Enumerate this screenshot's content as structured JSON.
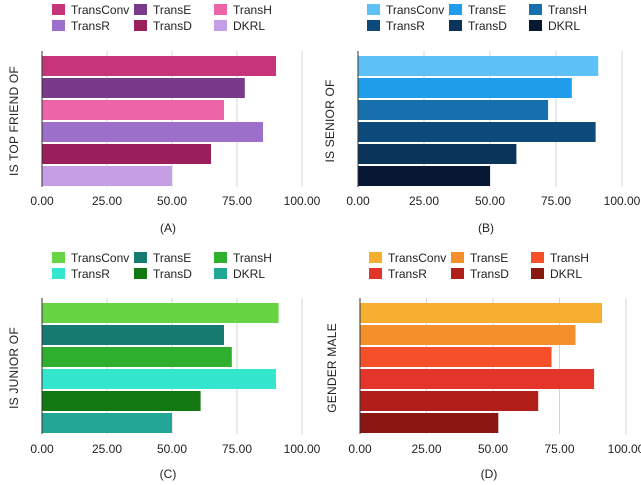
{
  "chart_data": [
    {
      "type": "bar",
      "caption": "(A)",
      "ylabel": "IS TOP FRIEND OF",
      "xlim": [
        0,
        100
      ],
      "xticks": [
        "0.00",
        "25.00",
        "50.00",
        "75.00",
        "100.00"
      ],
      "legend_position": "top",
      "series": [
        {
          "name": "TransConv",
          "value": 90,
          "color": "#c6347a"
        },
        {
          "name": "TransE",
          "value": 78,
          "color": "#7a3a8c"
        },
        {
          "name": "TransH",
          "value": 70,
          "color": "#ee64a8"
        },
        {
          "name": "TransR",
          "value": 85,
          "color": "#9b6fca"
        },
        {
          "name": "TransD",
          "value": 65,
          "color": "#9b1f5d"
        },
        {
          "name": "DKRL",
          "value": 50,
          "color": "#c59fe6"
        }
      ]
    },
    {
      "type": "bar",
      "caption": "(B)",
      "ylabel": "IS SENIOR OF",
      "xlim": [
        0,
        100
      ],
      "xticks": [
        "0.00",
        "25.00",
        "50.00",
        "75.00",
        "100.00"
      ],
      "legend_position": "top",
      "series": [
        {
          "name": "TransConv",
          "value": 91,
          "color": "#5ec1f5"
        },
        {
          "name": "TransE",
          "value": 81,
          "color": "#1f9cea"
        },
        {
          "name": "TransH",
          "value": 72,
          "color": "#1670ad"
        },
        {
          "name": "TransR",
          "value": 90,
          "color": "#0d4a7c"
        },
        {
          "name": "TransD",
          "value": 60,
          "color": "#0b345a"
        },
        {
          "name": "DKRL",
          "value": 50,
          "color": "#061833"
        }
      ]
    },
    {
      "type": "bar",
      "caption": "(C)",
      "ylabel": "IS JUNIOR OF",
      "xlim": [
        0,
        100
      ],
      "xticks": [
        "0.00",
        "25.00",
        "50.00",
        "75.00",
        "100.00"
      ],
      "legend_position": "top",
      "series": [
        {
          "name": "TransConv",
          "value": 91,
          "color": "#67d444"
        },
        {
          "name": "TransE",
          "value": 70,
          "color": "#157a70"
        },
        {
          "name": "TransH",
          "value": 73,
          "color": "#2eaf2e"
        },
        {
          "name": "TransR",
          "value": 90,
          "color": "#34e6ce"
        },
        {
          "name": "TransD",
          "value": 61,
          "color": "#127812"
        },
        {
          "name": "DKRL",
          "value": 50,
          "color": "#22a695"
        }
      ]
    },
    {
      "type": "bar",
      "caption": "(D)",
      "ylabel": "GENDER MALE",
      "xlim": [
        0,
        100
      ],
      "xticks": [
        "0.00",
        "25.00",
        "50.00",
        "75.00",
        "100.00"
      ],
      "legend_position": "top",
      "series": [
        {
          "name": "TransConv",
          "value": 91,
          "color": "#f5ae2f"
        },
        {
          "name": "TransE",
          "value": 81,
          "color": "#f58f2b"
        },
        {
          "name": "TransH",
          "value": 72,
          "color": "#f5502a"
        },
        {
          "name": "TransR",
          "value": 88,
          "color": "#e4352b"
        },
        {
          "name": "TransD",
          "value": 67,
          "color": "#b21e1a"
        },
        {
          "name": "DKRL",
          "value": 52,
          "color": "#8a1712"
        }
      ]
    }
  ]
}
